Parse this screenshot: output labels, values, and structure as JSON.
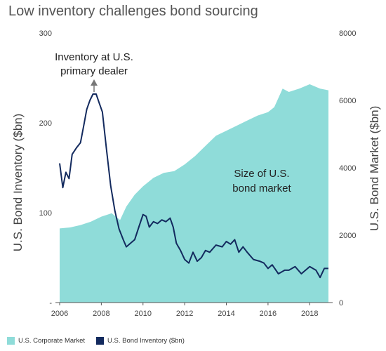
{
  "title": "Low inventory challenges bond sourcing",
  "colors": {
    "market": "#8fdcd9",
    "inventory": "#132a5e",
    "axis": "#666666"
  },
  "legend": [
    {
      "label": "U.S. Corporate Market",
      "color": "#8fdcd9",
      "icon": "square-swatch"
    },
    {
      "label": "U.S. Bond Inventory ($bn)",
      "color": "#132a5e",
      "icon": "square-swatch"
    }
  ],
  "annotations": {
    "inventory": [
      "Inventory at U.S.",
      "primary dealer"
    ],
    "market": [
      "Size of U.S.",
      "bond market"
    ]
  },
  "chart_data": {
    "type": "line",
    "title": "Low inventory challenges bond sourcing",
    "xlim": [
      2006,
      2018.9
    ],
    "x_ticks": [
      "2006",
      "2008",
      "2010",
      "2012",
      "2014",
      "2016",
      "2018"
    ],
    "left_axis": {
      "label": "U.S. Bond Inventory ($bn)",
      "ylim": [
        0,
        300
      ],
      "ticks": [
        "300",
        "200",
        "100",
        "-"
      ],
      "tick_values": [
        300,
        200,
        100,
        0
      ]
    },
    "right_axis": {
      "label": "U.S. Bond Market ($bn)",
      "ylim": [
        0,
        8000
      ],
      "ticks": [
        "8000",
        "6000",
        "4000",
        "2000",
        "0"
      ],
      "tick_values": [
        8000,
        6000,
        4000,
        2000,
        0
      ]
    },
    "series": [
      {
        "name": "U.S. Corporate Market",
        "type": "area",
        "axis": "right",
        "points": [
          [
            2006.0,
            2200
          ],
          [
            2006.5,
            2230
          ],
          [
            2007.0,
            2300
          ],
          [
            2007.5,
            2400
          ],
          [
            2008.0,
            2550
          ],
          [
            2008.5,
            2650
          ],
          [
            2008.9,
            2450
          ],
          [
            2009.2,
            2850
          ],
          [
            2009.6,
            3200
          ],
          [
            2010.0,
            3450
          ],
          [
            2010.5,
            3700
          ],
          [
            2011.0,
            3850
          ],
          [
            2011.5,
            3900
          ],
          [
            2012.0,
            4100
          ],
          [
            2012.5,
            4350
          ],
          [
            2013.0,
            4650
          ],
          [
            2013.5,
            4950
          ],
          [
            2014.0,
            5100
          ],
          [
            2014.5,
            5250
          ],
          [
            2015.0,
            5400
          ],
          [
            2015.5,
            5550
          ],
          [
            2016.0,
            5650
          ],
          [
            2016.3,
            5800
          ],
          [
            2016.7,
            6350
          ],
          [
            2017.0,
            6250
          ],
          [
            2017.5,
            6350
          ],
          [
            2018.0,
            6480
          ],
          [
            2018.5,
            6350
          ],
          [
            2018.9,
            6300
          ]
        ]
      },
      {
        "name": "U.S. Bond Inventory ($bn)",
        "type": "line",
        "axis": "left",
        "points": [
          [
            2006.0,
            155
          ],
          [
            2006.15,
            128
          ],
          [
            2006.3,
            145
          ],
          [
            2006.45,
            138
          ],
          [
            2006.6,
            165
          ],
          [
            2006.8,
            172
          ],
          [
            2007.0,
            178
          ],
          [
            2007.15,
            196
          ],
          [
            2007.3,
            215
          ],
          [
            2007.45,
            225
          ],
          [
            2007.6,
            232
          ],
          [
            2007.75,
            232
          ],
          [
            2007.9,
            222
          ],
          [
            2008.05,
            212
          ],
          [
            2008.25,
            170
          ],
          [
            2008.45,
            130
          ],
          [
            2008.65,
            102
          ],
          [
            2008.85,
            82
          ],
          [
            2009.05,
            70
          ],
          [
            2009.2,
            62
          ],
          [
            2009.4,
            66
          ],
          [
            2009.6,
            70
          ],
          [
            2009.8,
            84
          ],
          [
            2010.0,
            98
          ],
          [
            2010.15,
            96
          ],
          [
            2010.3,
            84
          ],
          [
            2010.5,
            90
          ],
          [
            2010.7,
            88
          ],
          [
            2010.9,
            92
          ],
          [
            2011.1,
            90
          ],
          [
            2011.3,
            94
          ],
          [
            2011.45,
            84
          ],
          [
            2011.6,
            66
          ],
          [
            2011.8,
            58
          ],
          [
            2012.0,
            48
          ],
          [
            2012.2,
            44
          ],
          [
            2012.4,
            56
          ],
          [
            2012.6,
            46
          ],
          [
            2012.8,
            50
          ],
          [
            2013.0,
            58
          ],
          [
            2013.2,
            56
          ],
          [
            2013.5,
            64
          ],
          [
            2013.8,
            62
          ],
          [
            2014.0,
            68
          ],
          [
            2014.2,
            65
          ],
          [
            2014.4,
            70
          ],
          [
            2014.6,
            56
          ],
          [
            2014.8,
            62
          ],
          [
            2015.0,
            56
          ],
          [
            2015.3,
            48
          ],
          [
            2015.6,
            46
          ],
          [
            2015.8,
            44
          ],
          [
            2016.0,
            38
          ],
          [
            2016.2,
            42
          ],
          [
            2016.5,
            32
          ],
          [
            2016.8,
            36
          ],
          [
            2017.0,
            36
          ],
          [
            2017.3,
            40
          ],
          [
            2017.6,
            32
          ],
          [
            2018.0,
            40
          ],
          [
            2018.3,
            36
          ],
          [
            2018.5,
            28
          ],
          [
            2018.7,
            38
          ],
          [
            2018.9,
            38
          ]
        ]
      }
    ],
    "grid": false
  }
}
